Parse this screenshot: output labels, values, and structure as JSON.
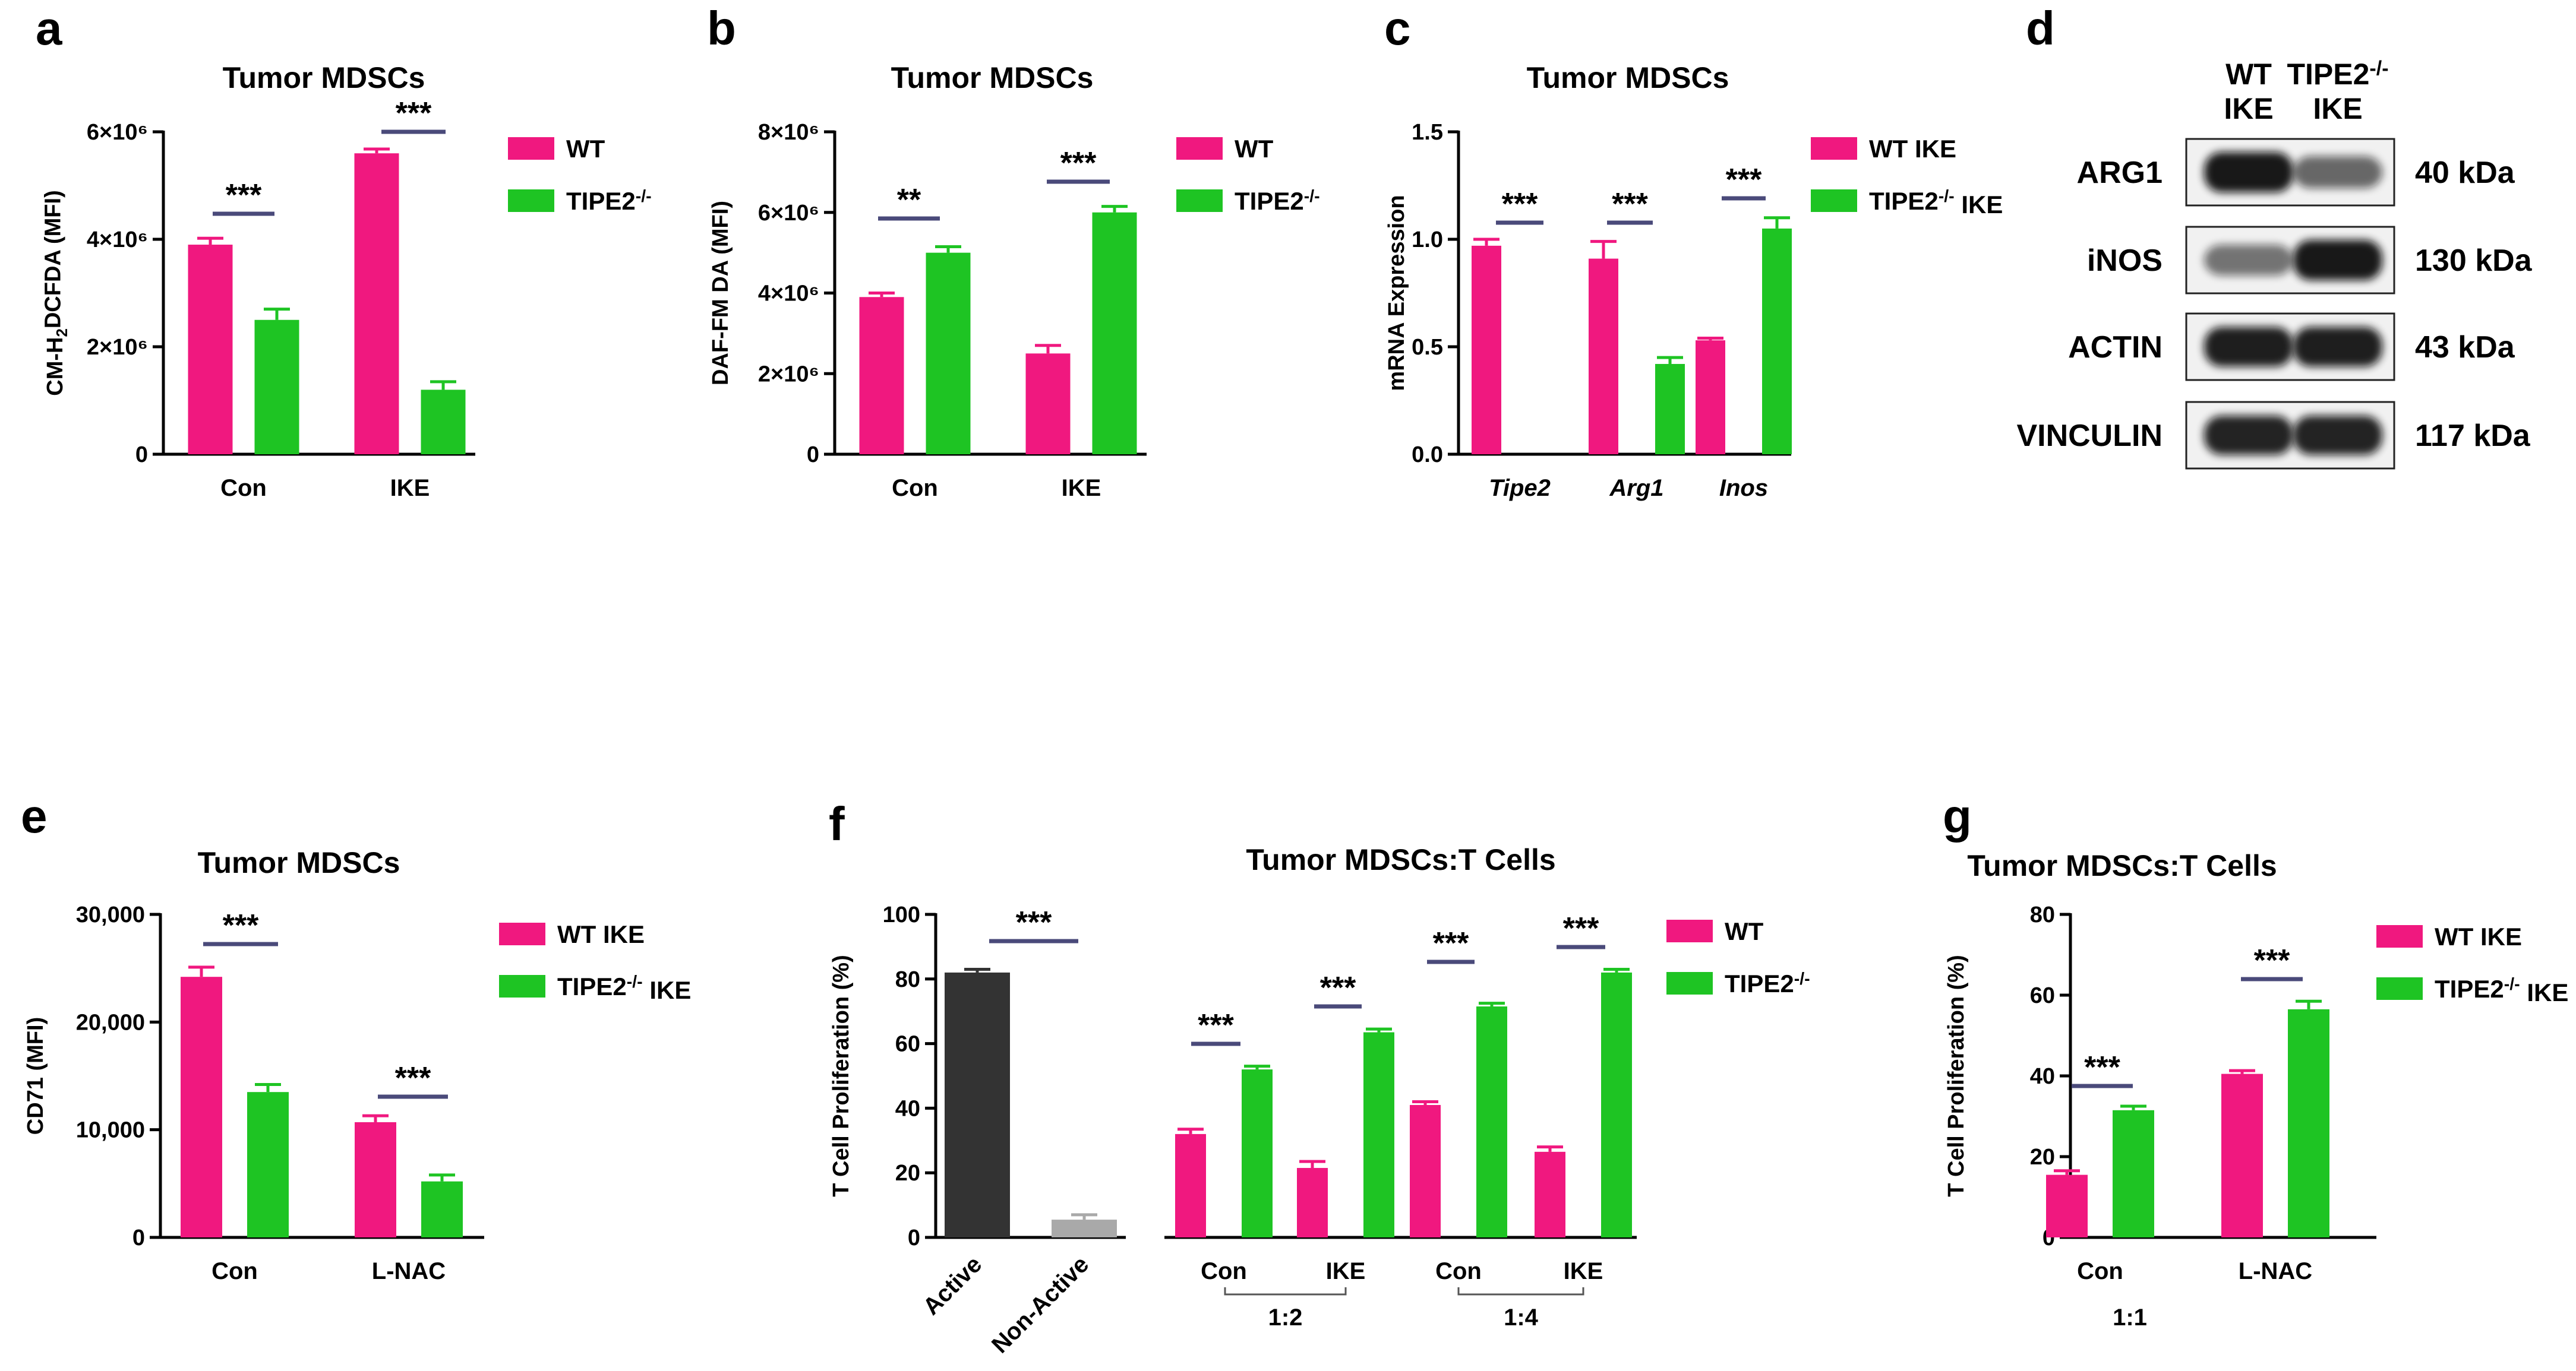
{
  "colors": {
    "wt": "#f0187f",
    "ko": "#1ec423",
    "active": "#333333",
    "nonactive": "#a9a9a9",
    "sigline": "#4a4a7a"
  },
  "chart_data": [
    {
      "id": "a",
      "panel_label": "a",
      "type": "bar",
      "title": "Tumor MDSCs",
      "ylabel": "CM-H2DCFDA (MFI)",
      "ylim": [
        0,
        6000000
      ],
      "ytick_labels": [
        "0",
        "2×10⁶",
        "4×10⁶",
        "6×10⁶"
      ],
      "categories": [
        "Con",
        "IKE"
      ],
      "series": [
        {
          "name": "WT",
          "values": [
            3900000,
            5600000
          ],
          "errors": [
            120000,
            80000
          ]
        },
        {
          "name": "TIPE2-/-",
          "values": [
            2500000,
            1200000
          ],
          "errors": [
            200000,
            150000
          ]
        }
      ],
      "legend": [
        "WT",
        "TIPE2-/-"
      ],
      "significance": [
        "***",
        "***"
      ]
    },
    {
      "id": "b",
      "panel_label": "b",
      "type": "bar",
      "title": "Tumor MDSCs",
      "ylabel": "DAF-FM DA (MFI)",
      "ylim": [
        0,
        8000000
      ],
      "ytick_labels": [
        "0",
        "2×10⁶",
        "4×10⁶",
        "6×10⁶",
        "8×10⁶"
      ],
      "categories": [
        "Con",
        "IKE"
      ],
      "series": [
        {
          "name": "WT",
          "values": [
            3900000,
            2500000
          ],
          "errors": [
            100000,
            200000
          ]
        },
        {
          "name": "TIPE2-/-",
          "values": [
            5000000,
            6000000
          ],
          "errors": [
            150000,
            150000
          ]
        }
      ],
      "legend": [
        "WT",
        "TIPE2-/-"
      ],
      "significance": [
        "**",
        "***"
      ]
    },
    {
      "id": "c",
      "panel_label": "c",
      "type": "bar",
      "title": "Tumor MDSCs",
      "ylabel": "mRNA Expression",
      "ylim": [
        0,
        1.5
      ],
      "ytick_labels": [
        "0.0",
        "0.5",
        "1.0",
        "1.5"
      ],
      "categories": [
        "Tipe2",
        "Arg1",
        "Inos"
      ],
      "series": [
        {
          "name": "WT IKE",
          "values": [
            0.97,
            0.91,
            0.53
          ],
          "errors": [
            0.03,
            0.08,
            0.01
          ]
        },
        {
          "name": "TIPE2-/- IKE",
          "values": [
            0,
            0.42,
            1.05
          ],
          "errors": [
            0,
            0.03,
            0.05
          ]
        }
      ],
      "legend": [
        "WT IKE",
        "TIPE2-/- IKE"
      ],
      "significance": [
        "***",
        "***",
        "***"
      ]
    },
    {
      "id": "e",
      "panel_label": "e",
      "type": "bar",
      "title": "Tumor MDSCs",
      "ylabel": "CD71 (MFI)",
      "ylim": [
        0,
        30000
      ],
      "ytick_labels": [
        "0",
        "10,000",
        "20,000",
        "30,000"
      ],
      "categories": [
        "Con",
        "L-NAC"
      ],
      "series": [
        {
          "name": "WT IKE",
          "values": [
            24200,
            10700
          ],
          "errors": [
            900,
            600
          ]
        },
        {
          "name": "TIPE2-/- IKE",
          "values": [
            13500,
            5200
          ],
          "errors": [
            700,
            600
          ]
        }
      ],
      "legend": [
        "WT IKE",
        "TIPE2-/- IKE"
      ],
      "significance": [
        "***",
        "***"
      ]
    },
    {
      "id": "f",
      "panel_label": "f",
      "type": "bar",
      "title": "Tumor MDSCs:T Cells",
      "ylabel": "T Cell Proliferation (%)",
      "ylim": [
        0,
        100
      ],
      "ytick_labels": [
        "0",
        "20",
        "40",
        "60",
        "80",
        "100"
      ],
      "controls": {
        "categories": [
          "Active",
          "Non-Active"
        ],
        "values": [
          82,
          5.5
        ],
        "errors": [
          1,
          1.5
        ]
      },
      "categories": [
        "Con",
        "IKE",
        "Con",
        "IKE"
      ],
      "ratio_groups": [
        "1:2",
        "1:4"
      ],
      "series": [
        {
          "name": "WT",
          "values": [
            32,
            21.5,
            41,
            26.5
          ],
          "errors": [
            1.5,
            2,
            1,
            1.5
          ]
        },
        {
          "name": "TIPE2-/-",
          "values": [
            52,
            63.5,
            71.5,
            82
          ],
          "errors": [
            1,
            1,
            1,
            1
          ]
        }
      ],
      "legend": [
        "WT",
        "TIPE2-/-"
      ],
      "significance": [
        "***",
        "***",
        "***",
        "***",
        "***"
      ]
    },
    {
      "id": "g",
      "panel_label": "g",
      "type": "bar",
      "title": "Tumor MDSCs:T Cells",
      "ylabel": "T Cell Proliferation (%)",
      "ylim": [
        0,
        80
      ],
      "ytick_labels": [
        "0",
        "20",
        "40",
        "60",
        "80"
      ],
      "categories": [
        "Con",
        "L-NAC"
      ],
      "ratio_label": "1:1",
      "series": [
        {
          "name": "WT IKE",
          "values": [
            15.5,
            40.5
          ],
          "errors": [
            1,
            0.8
          ]
        },
        {
          "name": "TIPE2-/- IKE",
          "values": [
            31.5,
            56.5
          ],
          "errors": [
            1,
            2
          ]
        }
      ],
      "legend": [
        "WT IKE",
        "TIPE2-/- IKE"
      ],
      "significance": [
        "***",
        "***"
      ]
    }
  ],
  "western_blot": {
    "panel_label": "d",
    "columns": [
      {
        "line1": "WT",
        "line2": "IKE"
      },
      {
        "line1": "TIPE2-/-",
        "line2": "IKE"
      }
    ],
    "rows": [
      {
        "protein": "ARG1",
        "size": "40 kDa"
      },
      {
        "protein": "iNOS",
        "size": "130 kDa"
      },
      {
        "protein": "ACTIN",
        "size": "43 kDa"
      },
      {
        "protein": "VINCULIN",
        "size": "117 kDa"
      }
    ]
  }
}
